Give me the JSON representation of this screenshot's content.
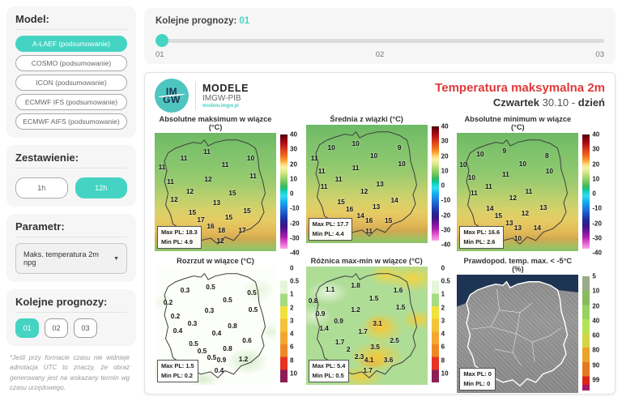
{
  "colors": {
    "accent": "#45d4c3",
    "title_red": "#e03a3a",
    "sea_navy": "#1d3552"
  },
  "icons": {
    "dropdown_caret": "▼"
  },
  "sidebar": {
    "model_label": "Model:",
    "models": [
      {
        "label": "A-LAEF (podsumowanie)",
        "active": true
      },
      {
        "label": "COSMO (podsumowanie)",
        "active": false
      },
      {
        "label": "ICON (podsumowanie)",
        "active": false
      },
      {
        "label": "ECMWF IFS (podsumowanie)",
        "active": false
      },
      {
        "label": "ECMWF AIFS (podsumowanie)",
        "active": false
      }
    ],
    "zestawienie_label": "Zestawienie:",
    "zestawienie": [
      {
        "label": "1h",
        "active": false
      },
      {
        "label": "12h",
        "active": true
      }
    ],
    "parametr_label": "Parametr:",
    "parametr_value": "Maks. temperatura 2m npg",
    "prognozy_label": "Kolejne prognozy:",
    "prognozy": [
      {
        "label": "01",
        "active": true
      },
      {
        "label": "02",
        "active": false
      },
      {
        "label": "03",
        "active": false
      }
    ],
    "footnote": "*Jeśli przy formacie czasu nie widnieje adnotacja UTC to znaczy, że obraz generowany jest na wskazany termin wg czasu urzędowego."
  },
  "topbar": {
    "label": "Kolejne prognozy:",
    "value": "01",
    "ticks": [
      "01",
      "02",
      "03"
    ]
  },
  "panel": {
    "logo_circle_top": "IM",
    "logo_circle_bottom": "GW",
    "logo_title": "MODELE",
    "logo_subtitle": "IMGW-PIB",
    "logo_url": "modele.imgw.pl",
    "title": "Temperatura maksymalna 2m",
    "date_day": "Czwartek",
    "date_num": "30.10",
    "date_sep": "-",
    "date_part": "dzień"
  },
  "chart_data": {
    "type": "heatmap",
    "region": "Poland",
    "maps": [
      {
        "title": "Absolutne maksimum w wiązce (°C)",
        "stats": [
          "Max PL: 18.3",
          "Min PL: 4.9"
        ],
        "colorbar": {
          "style": "temp",
          "ticks": [
            "40",
            "30",
            "20",
            "10",
            "0",
            "-10",
            "-20",
            "-30",
            "-40"
          ],
          "positions": [
            0,
            12.5,
            25,
            37.5,
            50,
            62.5,
            75,
            87.5,
            100
          ]
        },
        "points": [
          {
            "v": "11",
            "x": 24,
            "y": 21
          },
          {
            "v": "11",
            "x": 43,
            "y": 16
          },
          {
            "v": "10",
            "x": 79,
            "y": 21
          },
          {
            "v": "11",
            "x": 6,
            "y": 29
          },
          {
            "v": "11",
            "x": 58,
            "y": 27
          },
          {
            "v": "11",
            "x": 81,
            "y": 36
          },
          {
            "v": "11",
            "x": 13,
            "y": 41
          },
          {
            "v": "12",
            "x": 44,
            "y": 39
          },
          {
            "v": "12",
            "x": 29,
            "y": 49
          },
          {
            "v": "15",
            "x": 64,
            "y": 51
          },
          {
            "v": "12",
            "x": 16,
            "y": 56
          },
          {
            "v": "13",
            "x": 51,
            "y": 59
          },
          {
            "v": "15",
            "x": 31,
            "y": 67
          },
          {
            "v": "15",
            "x": 76,
            "y": 66
          },
          {
            "v": "17",
            "x": 38,
            "y": 73
          },
          {
            "v": "15",
            "x": 61,
            "y": 71
          },
          {
            "v": "16",
            "x": 46,
            "y": 79
          },
          {
            "v": "18",
            "x": 55,
            "y": 82
          },
          {
            "v": "17",
            "x": 72,
            "y": 82
          },
          {
            "v": "12",
            "x": 54,
            "y": 91
          }
        ]
      },
      {
        "title": "Średnia z wiązki (°C)",
        "stats": [
          "Max PL: 17.7",
          "Min PL: 4.4"
        ],
        "colorbar": {
          "style": "temp",
          "ticks": [
            "40",
            "30",
            "20",
            "10",
            "0",
            "-10",
            "-20",
            "-30",
            "-40"
          ],
          "positions": [
            0,
            12.5,
            25,
            37.5,
            50,
            62.5,
            75,
            87.5,
            100
          ]
        },
        "points": [
          {
            "v": "10",
            "x": 21,
            "y": 19
          },
          {
            "v": "10",
            "x": 41,
            "y": 16
          },
          {
            "v": "9",
            "x": 77,
            "y": 19
          },
          {
            "v": "11",
            "x": 7,
            "y": 28
          },
          {
            "v": "10",
            "x": 56,
            "y": 26
          },
          {
            "v": "10",
            "x": 79,
            "y": 33
          },
          {
            "v": "11",
            "x": 13,
            "y": 39
          },
          {
            "v": "11",
            "x": 41,
            "y": 36
          },
          {
            "v": "11",
            "x": 27,
            "y": 46
          },
          {
            "v": "13",
            "x": 61,
            "y": 50
          },
          {
            "v": "11",
            "x": 15,
            "y": 52
          },
          {
            "v": "12",
            "x": 48,
            "y": 56
          },
          {
            "v": "15",
            "x": 29,
            "y": 65
          },
          {
            "v": "14",
            "x": 73,
            "y": 64
          },
          {
            "v": "16",
            "x": 36,
            "y": 71
          },
          {
            "v": "13",
            "x": 58,
            "y": 69
          },
          {
            "v": "14",
            "x": 45,
            "y": 77
          },
          {
            "v": "16",
            "x": 52,
            "y": 81
          },
          {
            "v": "15",
            "x": 68,
            "y": 81
          },
          {
            "v": "11",
            "x": 52,
            "y": 90
          }
        ]
      },
      {
        "title": "Absolutne minimum w wiązce (°C)",
        "stats": [
          "Max PL: 16.6",
          "Min PL: 2.6"
        ],
        "colorbar": {
          "style": "temp",
          "ticks": [
            "40",
            "30",
            "20",
            "10",
            "0",
            "-10",
            "-20",
            "-30",
            "-40"
          ],
          "positions": [
            0,
            12.5,
            25,
            37.5,
            50,
            62.5,
            75,
            87.5,
            100
          ]
        },
        "points": [
          {
            "v": "10",
            "x": 19,
            "y": 18
          },
          {
            "v": "9",
            "x": 39,
            "y": 15
          },
          {
            "v": "8",
            "x": 74,
            "y": 19
          },
          {
            "v": "10",
            "x": 5,
            "y": 27
          },
          {
            "v": "10",
            "x": 54,
            "y": 26
          },
          {
            "v": "10",
            "x": 76,
            "y": 32
          },
          {
            "v": "10",
            "x": 12,
            "y": 38
          },
          {
            "v": "11",
            "x": 40,
            "y": 35
          },
          {
            "v": "11",
            "x": 26,
            "y": 45
          },
          {
            "v": "11",
            "x": 59,
            "y": 49
          },
          {
            "v": "11",
            "x": 14,
            "y": 51
          },
          {
            "v": "12",
            "x": 46,
            "y": 55
          },
          {
            "v": "14",
            "x": 27,
            "y": 64
          },
          {
            "v": "13",
            "x": 71,
            "y": 63
          },
          {
            "v": "15",
            "x": 34,
            "y": 70
          },
          {
            "v": "12",
            "x": 56,
            "y": 68
          },
          {
            "v": "13",
            "x": 43,
            "y": 76
          },
          {
            "v": "13",
            "x": 50,
            "y": 80
          },
          {
            "v": "14",
            "x": 66,
            "y": 80
          },
          {
            "v": "10",
            "x": 50,
            "y": 89
          }
        ]
      },
      {
        "title": "Rozrzut w wiązce (°C)",
        "stats": [
          "Max PL: 1.5",
          "Min PL: 0.2"
        ],
        "colorbar": {
          "style": "spread",
          "ticks": [
            "0",
            "0.5",
            "1",
            "2",
            "3",
            "4",
            "6",
            "8",
            "10"
          ],
          "positions": [
            0,
            11.1,
            22.2,
            33.3,
            44.4,
            55.6,
            66.7,
            77.8,
            88.9
          ]
        },
        "points": [
          {
            "v": "0.3",
            "x": 25,
            "y": 20
          },
          {
            "v": "0.5",
            "x": 46,
            "y": 17
          },
          {
            "v": "0.5",
            "x": 80,
            "y": 22
          },
          {
            "v": "0.2",
            "x": 11,
            "y": 30
          },
          {
            "v": "0.5",
            "x": 60,
            "y": 28
          },
          {
            "v": "0.5",
            "x": 81,
            "y": 36
          },
          {
            "v": "0.2",
            "x": 17,
            "y": 42
          },
          {
            "v": "0.3",
            "x": 45,
            "y": 37
          },
          {
            "v": "0.3",
            "x": 31,
            "y": 48
          },
          {
            "v": "0.8",
            "x": 64,
            "y": 50
          },
          {
            "v": "0.4",
            "x": 19,
            "y": 54
          },
          {
            "v": "0.4",
            "x": 51,
            "y": 56
          },
          {
            "v": "0.5",
            "x": 32,
            "y": 65
          },
          {
            "v": "0.6",
            "x": 76,
            "y": 62
          },
          {
            "v": "0.5",
            "x": 39,
            "y": 71
          },
          {
            "v": "0.8",
            "x": 60,
            "y": 69
          },
          {
            "v": "0.5",
            "x": 47,
            "y": 77
          },
          {
            "v": "0.9",
            "x": 55,
            "y": 79
          },
          {
            "v": "1.2",
            "x": 73,
            "y": 78
          },
          {
            "v": "0.4",
            "x": 53,
            "y": 88
          }
        ]
      },
      {
        "title": "Różnica max-min w wiązce (°C)",
        "stats": [
          "Max PL: 5.4",
          "Min PL: 0.5"
        ],
        "colorbar": {
          "style": "spread",
          "ticks": [
            "0",
            "0.5",
            "1",
            "2",
            "3",
            "4",
            "6",
            "8",
            "10"
          ],
          "positions": [
            0,
            11.1,
            22.2,
            33.3,
            44.4,
            55.6,
            66.7,
            77.8,
            88.9
          ]
        },
        "points": [
          {
            "v": "1.1",
            "x": 20,
            "y": 19
          },
          {
            "v": "1.8",
            "x": 41,
            "y": 16
          },
          {
            "v": "1.6",
            "x": 76,
            "y": 20
          },
          {
            "v": "0.8",
            "x": 6,
            "y": 29
          },
          {
            "v": "1.5",
            "x": 56,
            "y": 27
          },
          {
            "v": "1.5",
            "x": 78,
            "y": 34
          },
          {
            "v": "0.9",
            "x": 12,
            "y": 40
          },
          {
            "v": "1.2",
            "x": 41,
            "y": 36
          },
          {
            "v": "0.9",
            "x": 27,
            "y": 46
          },
          {
            "v": "3.1",
            "x": 59,
            "y": 48
          },
          {
            "v": "1.4",
            "x": 15,
            "y": 52
          },
          {
            "v": "1.7",
            "x": 47,
            "y": 55
          },
          {
            "v": "1.7",
            "x": 28,
            "y": 64
          },
          {
            "v": "2.5",
            "x": 73,
            "y": 62
          },
          {
            "v": "2",
            "x": 35,
            "y": 70
          },
          {
            "v": "3.5",
            "x": 57,
            "y": 68
          },
          {
            "v": "2.3",
            "x": 44,
            "y": 76
          },
          {
            "v": "4.1",
            "x": 52,
            "y": 79
          },
          {
            "v": "3.6",
            "x": 68,
            "y": 79
          },
          {
            "v": "1.7",
            "x": 51,
            "y": 88
          }
        ]
      },
      {
        "title": "Prawdopod. temp. max. < -5°C (%)",
        "stats": [
          "Max PL: 0",
          "Min PL: 0"
        ],
        "colorbar": {
          "style": "prob",
          "ticks": [
            "5",
            "10",
            "20",
            "40",
            "60",
            "80",
            "90",
            "99"
          ],
          "positions": [
            0,
            12.5,
            25,
            37.5,
            50,
            62.5,
            75,
            87.5
          ]
        },
        "points": []
      }
    ]
  }
}
